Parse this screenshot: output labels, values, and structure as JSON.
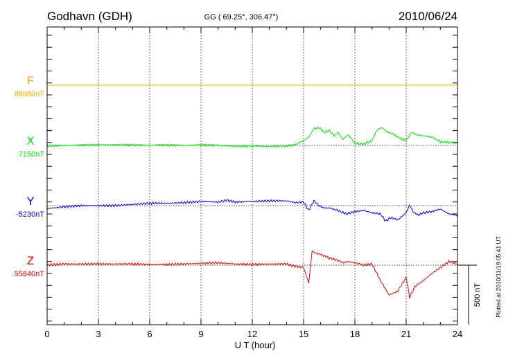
{
  "chart_data": {
    "type": "line",
    "title": "Godhavn (GDH)",
    "subtitle": "GG ( 69.25°, 306.47°)",
    "date": "2010/06/24",
    "xlabel": "U T (hour)",
    "xlim": [
      0,
      24
    ],
    "x_ticks": [
      "0",
      "3",
      "6",
      "9",
      "12",
      "15",
      "18",
      "21",
      "24"
    ],
    "grid": true,
    "scale_bar_label": "500 nT",
    "scale_bar_nT": 500,
    "plotted_note": "Plotted at 2010/11/19 05:41 UT",
    "series": [
      {
        "name": "F",
        "baseline_label": "88880nT",
        "color": "#f5a800",
        "x": [
          0,
          24
        ],
        "values": [
          0,
          0
        ]
      },
      {
        "name": "X",
        "baseline_label": "7150nT",
        "color": "#00e000",
        "x": [
          0,
          1,
          2,
          3,
          4,
          5,
          6,
          7,
          8,
          9,
          10,
          11,
          12,
          13,
          14,
          14.5,
          15,
          15.3,
          15.6,
          15.9,
          16.2,
          16.5,
          16.8,
          17.0,
          17.3,
          17.6,
          18.0,
          18.5,
          19.0,
          19.3,
          19.6,
          19.9,
          20.2,
          20.5,
          20.8,
          21.0,
          21.3,
          21.6,
          22.0,
          22.5,
          23.0,
          23.5,
          24.0
        ],
        "values": [
          -5,
          0,
          2,
          5,
          5,
          3,
          2,
          3,
          0,
          4,
          0,
          -8,
          -5,
          -10,
          -5,
          5,
          40,
          70,
          140,
          150,
          110,
          125,
          80,
          110,
          50,
          90,
          20,
          10,
          40,
          130,
          150,
          110,
          100,
          70,
          50,
          40,
          110,
          90,
          80,
          70,
          30,
          25,
          20
        ]
      },
      {
        "name": "Y",
        "baseline_label": "-5230nT",
        "color": "#0000e0",
        "x": [
          0,
          1,
          2,
          3,
          4,
          5,
          6,
          7,
          8,
          9,
          10,
          10.5,
          11,
          12,
          13,
          14,
          14.5,
          15,
          15.3,
          15.6,
          15.9,
          16.2,
          16.5,
          17.0,
          17.5,
          18.0,
          18.5,
          19.0,
          19.5,
          19.8,
          20.1,
          20.5,
          21.0,
          21.2,
          21.4,
          21.7,
          22.0,
          22.5,
          23.0,
          23.5,
          24.0
        ],
        "values": [
          -25,
          -10,
          0,
          0,
          0,
          10,
          20,
          20,
          25,
          35,
          30,
          45,
          30,
          35,
          40,
          40,
          25,
          30,
          -40,
          40,
          0,
          -20,
          -20,
          -40,
          -70,
          -50,
          -40,
          -60,
          -70,
          -130,
          -100,
          -120,
          -60,
          5,
          -50,
          -80,
          -60,
          -50,
          -30,
          -70,
          -80
        ]
      },
      {
        "name": "Z",
        "baseline_label": "55840nT",
        "color": "#e00000",
        "x": [
          0,
          1,
          2,
          3,
          4,
          5,
          6,
          7,
          8,
          9,
          10,
          11,
          12,
          13,
          14,
          14.5,
          15,
          15.3,
          15.5,
          15.7,
          16,
          16.5,
          17,
          17.3,
          17.6,
          18,
          18.5,
          19,
          19.5,
          20,
          20.5,
          21,
          21.2,
          21.5,
          22,
          22.5,
          23,
          23.5,
          24
        ],
        "values": [
          0,
          10,
          10,
          10,
          10,
          10,
          5,
          5,
          10,
          15,
          20,
          10,
          5,
          10,
          10,
          -10,
          -20,
          -150,
          120,
          100,
          90,
          60,
          40,
          20,
          30,
          20,
          0,
          10,
          -130,
          -250,
          -220,
          -100,
          -270,
          -180,
          -130,
          -70,
          -20,
          30,
          10
        ]
      }
    ]
  }
}
